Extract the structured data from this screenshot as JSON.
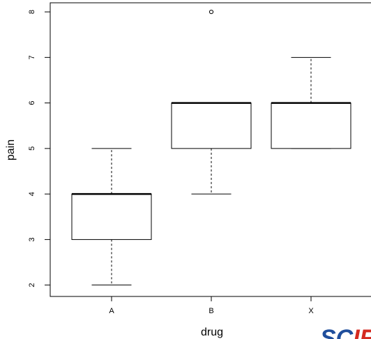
{
  "chart_data": {
    "type": "boxplot",
    "xlabel": "drug",
    "ylabel": "pain",
    "ylim": [
      1.75,
      8.2
    ],
    "yticks": [
      2,
      3,
      4,
      5,
      6,
      7,
      8
    ],
    "grid": false,
    "categories": [
      "A",
      "B",
      "X"
    ],
    "boxes": [
      {
        "label": "A",
        "whisker_low": 2,
        "q1": 3,
        "median": 4,
        "q3": 4,
        "whisker_high": 5,
        "outliers": []
      },
      {
        "label": "B",
        "whisker_low": 4,
        "q1": 5,
        "median": 6,
        "q3": 6,
        "whisker_high": 6,
        "outliers": [
          8
        ]
      },
      {
        "label": "X",
        "whisker_low": 5,
        "q1": 5,
        "median": 6,
        "q3": 6,
        "whisker_high": 7,
        "outliers": []
      }
    ]
  },
  "logo": {
    "text": "SCIR",
    "red_color": "#d42a20",
    "blue_color": "#1f4e9c",
    "icon": "scir-logo"
  }
}
